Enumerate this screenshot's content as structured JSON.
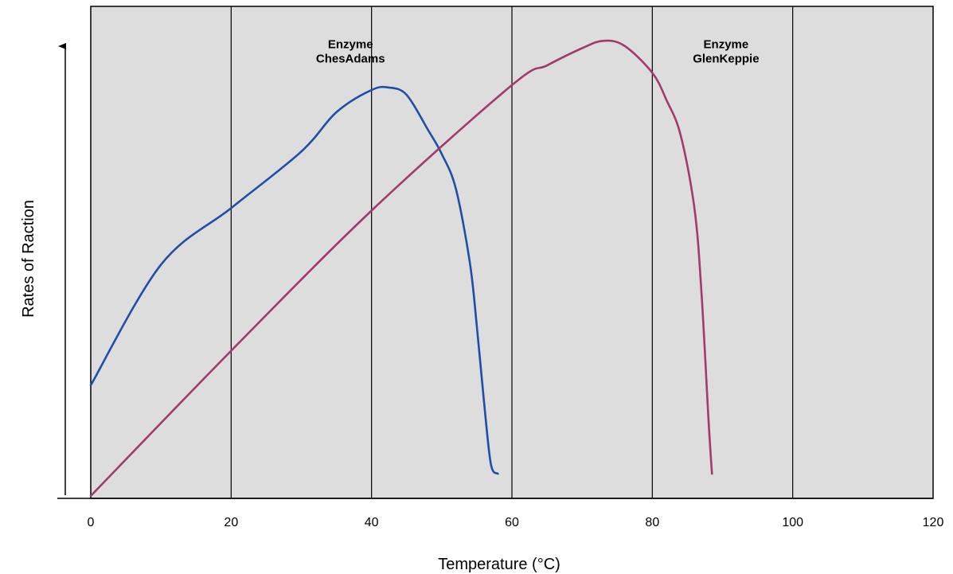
{
  "chart_data": {
    "type": "line",
    "title": "",
    "xlabel": "Temperature (°C)",
    "ylabel": "Rates of Raction",
    "xlim": [
      0,
      120
    ],
    "x_ticks": [
      0,
      20,
      40,
      60,
      80,
      100,
      120
    ],
    "ylim": [
      0,
      100
    ],
    "y_ticks_shown": false,
    "grid": "vertical",
    "plot_background": "#dddddd",
    "series": [
      {
        "label_lines": [
          "Enzyme",
          "ChesAdams"
        ],
        "color": "#1f4ea8",
        "label_at": [
          37,
          91.5
        ],
        "points": [
          [
            0,
            23
          ],
          [
            10,
            47.5
          ],
          [
            20,
            59
          ],
          [
            30,
            70.5
          ],
          [
            35,
            78.5
          ],
          [
            40,
            83
          ],
          [
            42.5,
            83.5
          ],
          [
            45,
            82
          ],
          [
            48,
            75
          ],
          [
            50,
            70
          ],
          [
            52,
            63
          ],
          [
            54,
            48
          ],
          [
            55,
            35
          ],
          [
            56,
            20
          ],
          [
            57,
            7
          ],
          [
            58,
            5
          ]
        ]
      },
      {
        "label_lines": [
          "Enzyme",
          "GlenKeppie"
        ],
        "color": "#a23a6b",
        "label_at": [
          90.5,
          91.5
        ],
        "points": [
          [
            0,
            0.5
          ],
          [
            20,
            30
          ],
          [
            40,
            58.5
          ],
          [
            60,
            84
          ],
          [
            65,
            88
          ],
          [
            70,
            91.5
          ],
          [
            73,
            93
          ],
          [
            76,
            92
          ],
          [
            80,
            86.5
          ],
          [
            82,
            81
          ],
          [
            84,
            74
          ],
          [
            86,
            59
          ],
          [
            87,
            42
          ],
          [
            88,
            16
          ],
          [
            88.5,
            5
          ]
        ]
      }
    ]
  }
}
